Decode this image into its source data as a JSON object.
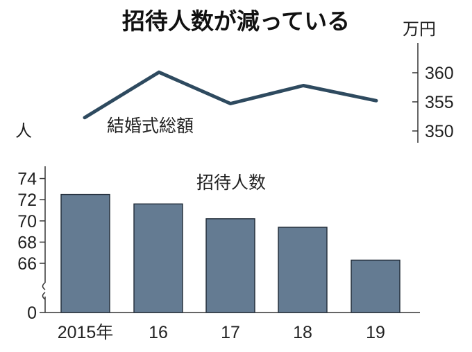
{
  "title": "招待人数が減っている",
  "chart_data": [
    {
      "type": "line",
      "x": [
        "2015年",
        "16",
        "17",
        "18",
        "19"
      ],
      "series": [
        {
          "name": "結婚式総額",
          "values": [
            352.3,
            360.1,
            354.7,
            357.8,
            355.2
          ]
        }
      ],
      "yunit": "万円",
      "ylim": [
        347,
        364
      ],
      "yticks": [
        360,
        355,
        350
      ],
      "ytick_labels": [
        "360",
        "355",
        "350"
      ],
      "axis_side": "right",
      "grid": false
    },
    {
      "type": "bar",
      "categories": [
        "2015年",
        "16",
        "17",
        "18",
        "19"
      ],
      "series": [
        {
          "name": "招待人数",
          "values": [
            72.5,
            71.6,
            70.2,
            69.4,
            66.3
          ]
        }
      ],
      "yunit": "人",
      "ylim": [
        0,
        75
      ],
      "axis_break": [
        0,
        62
      ],
      "yticks": [
        74,
        72,
        70,
        68,
        66,
        0
      ],
      "ytick_labels": [
        "74",
        "72",
        "70",
        "68",
        "66",
        "0"
      ],
      "grid": false
    }
  ]
}
